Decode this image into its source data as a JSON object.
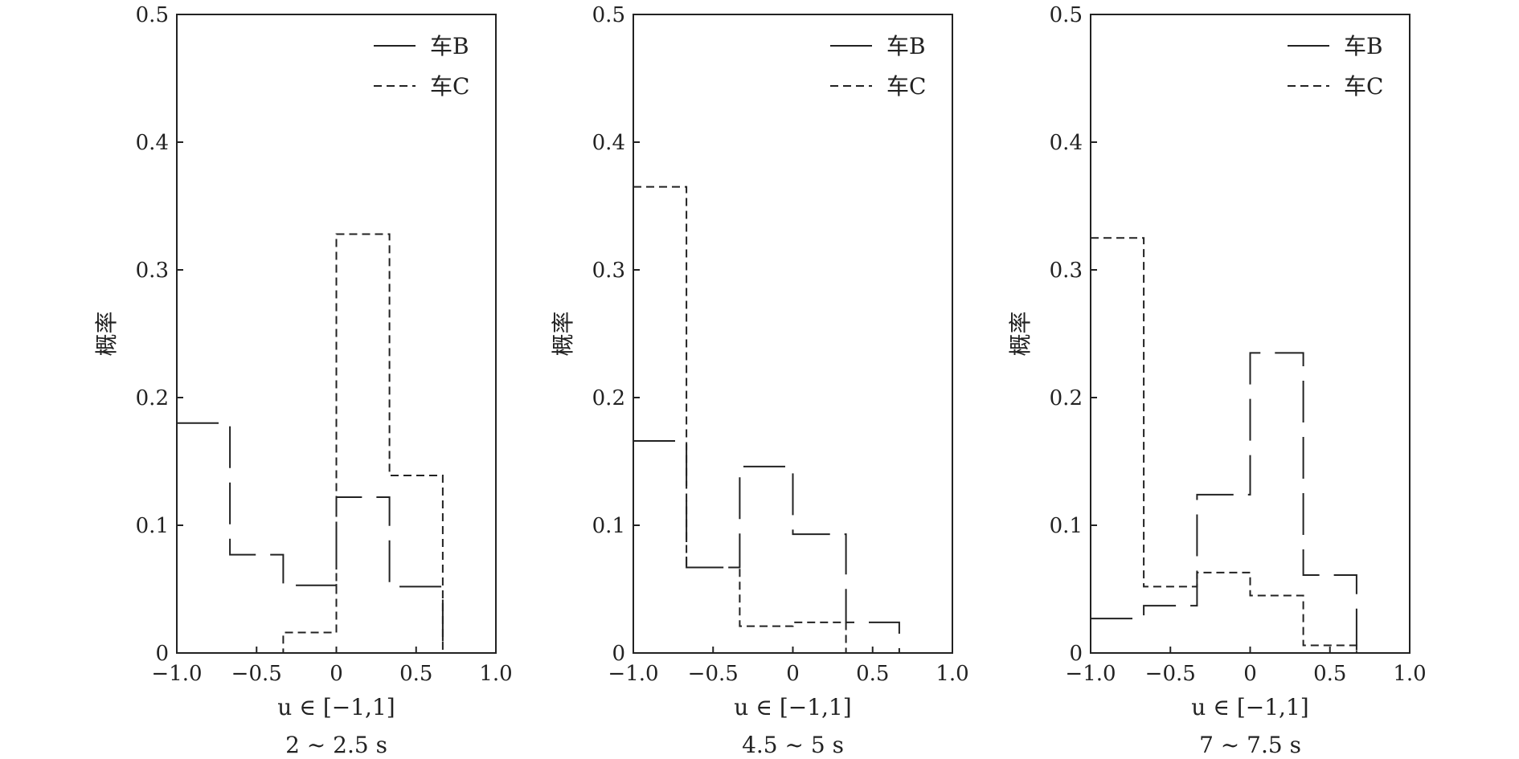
{
  "chart_data": [
    {
      "type": "step",
      "subtitle": "2 ~ 2.5 s",
      "xlabel": "u ∈ [−1,1]",
      "ylabel": "概率",
      "xlim": [
        -1.0,
        1.0
      ],
      "ylim": [
        0,
        0.5
      ],
      "x_ticks": [
        "−1.0",
        "−0.5",
        "0",
        "0.5",
        "1.0"
      ],
      "y_ticks": [
        "0",
        "0.1",
        "0.2",
        "0.3",
        "0.4",
        "0.5"
      ],
      "bin_edges": [
        -1.0,
        -0.667,
        -0.333,
        0.0,
        0.333,
        0.667,
        1.0
      ],
      "legend_position": "top-right",
      "series": [
        {
          "name": "车B",
          "style": "solid",
          "values": [
            0.18,
            0.077,
            0.053,
            0.122,
            0.052,
            0.0
          ]
        },
        {
          "name": "车C",
          "style": "dashed",
          "values": [
            0.0,
            0.0,
            0.016,
            0.328,
            0.139,
            0.0
          ]
        }
      ]
    },
    {
      "type": "step",
      "subtitle": "4.5 ~ 5 s",
      "xlabel": "u ∈ [−1,1]",
      "ylabel": "概率",
      "xlim": [
        -1.0,
        1.0
      ],
      "ylim": [
        0,
        0.5
      ],
      "x_ticks": [
        "−1.0",
        "−0.5",
        "0",
        "0.5",
        "1.0"
      ],
      "y_ticks": [
        "0",
        "0.1",
        "0.2",
        "0.3",
        "0.4",
        "0.5"
      ],
      "bin_edges": [
        -1.0,
        -0.667,
        -0.333,
        0.0,
        0.333,
        0.667,
        1.0
      ],
      "legend_position": "top-right",
      "series": [
        {
          "name": "车B",
          "style": "solid",
          "values": [
            0.166,
            0.067,
            0.146,
            0.093,
            0.024,
            0.0
          ]
        },
        {
          "name": "车C",
          "style": "dashed",
          "values": [
            0.365,
            0.067,
            0.021,
            0.024,
            0.0,
            0.0
          ]
        }
      ]
    },
    {
      "type": "step",
      "subtitle": "7 ~ 7.5 s",
      "xlabel": "u ∈ [−1,1]",
      "ylabel": "概率",
      "xlim": [
        -1.0,
        1.0
      ],
      "ylim": [
        0,
        0.5
      ],
      "x_ticks": [
        "−1.0",
        "−0.5",
        "0",
        "0.5",
        "1.0"
      ],
      "y_ticks": [
        "0",
        "0.1",
        "0.2",
        "0.3",
        "0.4",
        "0.5"
      ],
      "bin_edges": [
        -1.0,
        -0.667,
        -0.333,
        0.0,
        0.333,
        0.667,
        1.0
      ],
      "legend_position": "top-right",
      "series": [
        {
          "name": "车B",
          "style": "solid",
          "values": [
            0.027,
            0.037,
            0.124,
            0.235,
            0.061,
            0.0
          ]
        },
        {
          "name": "车C",
          "style": "dashed",
          "values": [
            0.325,
            0.052,
            0.063,
            0.045,
            0.006,
            0.0
          ]
        }
      ]
    }
  ]
}
